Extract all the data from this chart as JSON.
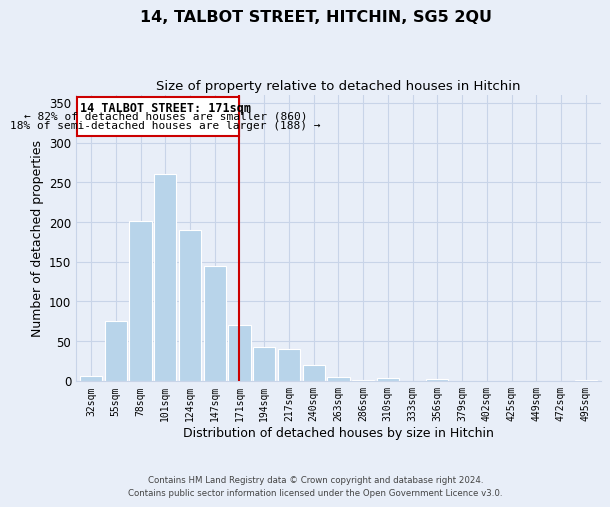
{
  "title": "14, TALBOT STREET, HITCHIN, SG5 2QU",
  "subtitle": "Size of property relative to detached houses in Hitchin",
  "xlabel": "Distribution of detached houses by size in Hitchin",
  "ylabel": "Number of detached properties",
  "categories": [
    "32sqm",
    "55sqm",
    "78sqm",
    "101sqm",
    "124sqm",
    "147sqm",
    "171sqm",
    "194sqm",
    "217sqm",
    "240sqm",
    "263sqm",
    "286sqm",
    "310sqm",
    "333sqm",
    "356sqm",
    "379sqm",
    "402sqm",
    "425sqm",
    "449sqm",
    "472sqm",
    "495sqm"
  ],
  "values": [
    6,
    75,
    201,
    260,
    190,
    145,
    70,
    43,
    40,
    20,
    5,
    1,
    4,
    0,
    2,
    0,
    0,
    0,
    0,
    0,
    1
  ],
  "bar_color": "#b8d4ea",
  "marker_line_color": "#cc0000",
  "marker_index": 6,
  "ylim": [
    0,
    360
  ],
  "yticks": [
    0,
    50,
    100,
    150,
    200,
    250,
    300,
    350
  ],
  "annotation_title": "14 TALBOT STREET: 171sqm",
  "annotation_line1": "← 82% of detached houses are smaller (860)",
  "annotation_line2": "18% of semi-detached houses are larger (188) →",
  "footer_line1": "Contains HM Land Registry data © Crown copyright and database right 2024.",
  "footer_line2": "Contains public sector information licensed under the Open Government Licence v3.0.",
  "background_color": "#e8eef8",
  "plot_bg_color": "#e8eef8",
  "grid_color": "#c8d4e8"
}
